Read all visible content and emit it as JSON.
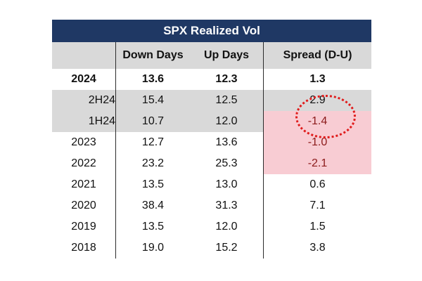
{
  "table": {
    "title": "SPX Realized Vol",
    "columns": [
      "",
      "Down Days",
      "Up Days",
      "Spread (D-U)"
    ],
    "rows": [
      {
        "label": "2024",
        "down": "13.6",
        "up": "12.3",
        "spread": "1.3"
      },
      {
        "label": "2H24",
        "down": "15.4",
        "up": "12.5",
        "spread": "2.9"
      },
      {
        "label": "1H24",
        "down": "10.7",
        "up": "12.0",
        "spread": "-1.4"
      },
      {
        "label": "2023",
        "down": "12.7",
        "up": "13.6",
        "spread": "-1.0"
      },
      {
        "label": "2022",
        "down": "23.2",
        "up": "25.3",
        "spread": "-2.1"
      },
      {
        "label": "2021",
        "down": "13.5",
        "up": "13.0",
        "spread": "0.6"
      },
      {
        "label": "2020",
        "down": "38.4",
        "up": "31.3",
        "spread": "7.1"
      },
      {
        "label": "2019",
        "down": "13.5",
        "up": "12.0",
        "spread": "1.5"
      },
      {
        "label": "2018",
        "down": "19.0",
        "up": "15.2",
        "spread": "3.8"
      }
    ]
  },
  "colors": {
    "title_bg": "#1f3864",
    "header_bg": "#d9d9d9",
    "negative_highlight": "#f8ccd3",
    "negative_text": "#8b1a1a",
    "annotation": "#e01b1b"
  }
}
